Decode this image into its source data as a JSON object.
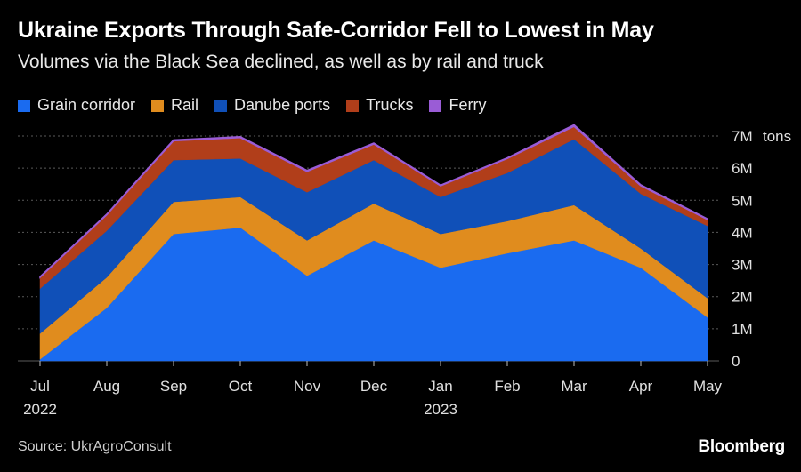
{
  "header": {
    "title": "Ukraine Exports Through Safe-Corridor Fell to Lowest in May",
    "subtitle": "Volumes via the Black Sea declined, as well as by rail and truck"
  },
  "footer": {
    "source": "Source: UkrAgroConsult",
    "brand": "Bloomberg"
  },
  "colors": {
    "background": "#000000",
    "grid": "#5a5a5a",
    "Grain corridor": "#1a6bf0",
    "Rail": "#e08c1e",
    "Danube ports": "#1050b8",
    "Trucks": "#b13e1a",
    "Ferry": "#9a5cd6"
  },
  "chart_data": {
    "type": "area",
    "stacked": true,
    "title": "Ukraine Exports Through Safe-Corridor Fell to Lowest in May",
    "ylabel": "tons",
    "ylim": [
      0,
      7
    ],
    "y_ticks": [
      "0",
      "1M",
      "2M",
      "3M",
      "4M",
      "5M",
      "6M",
      "7M"
    ],
    "y_unit_label": "tons",
    "categories": [
      "Jul",
      "Aug",
      "Sep",
      "Oct",
      "Nov",
      "Dec",
      "Jan",
      "Feb",
      "Mar",
      "Apr",
      "May"
    ],
    "year_labels": [
      {
        "index": 0,
        "label": "2022"
      },
      {
        "index": 6,
        "label": "2023"
      }
    ],
    "legend_position": "top-left",
    "series": [
      {
        "name": "Grain corridor",
        "values": [
          0.05,
          1.65,
          3.95,
          4.15,
          2.65,
          3.75,
          2.9,
          3.35,
          3.75,
          2.9,
          1.35
        ]
      },
      {
        "name": "Rail",
        "values": [
          0.8,
          0.95,
          1.0,
          0.95,
          1.1,
          1.15,
          1.05,
          1.0,
          1.1,
          0.6,
          0.6
        ]
      },
      {
        "name": "Danube ports",
        "values": [
          1.4,
          1.45,
          1.3,
          1.2,
          1.5,
          1.35,
          1.15,
          1.5,
          2.05,
          1.7,
          2.25
        ]
      },
      {
        "name": "Trucks",
        "values": [
          0.35,
          0.5,
          0.6,
          0.65,
          0.65,
          0.5,
          0.35,
          0.45,
          0.4,
          0.25,
          0.2
        ]
      },
      {
        "name": "Ferry",
        "values": [
          0.02,
          0.02,
          0.03,
          0.03,
          0.03,
          0.03,
          0.02,
          0.02,
          0.05,
          0.03,
          0.02
        ]
      }
    ]
  }
}
